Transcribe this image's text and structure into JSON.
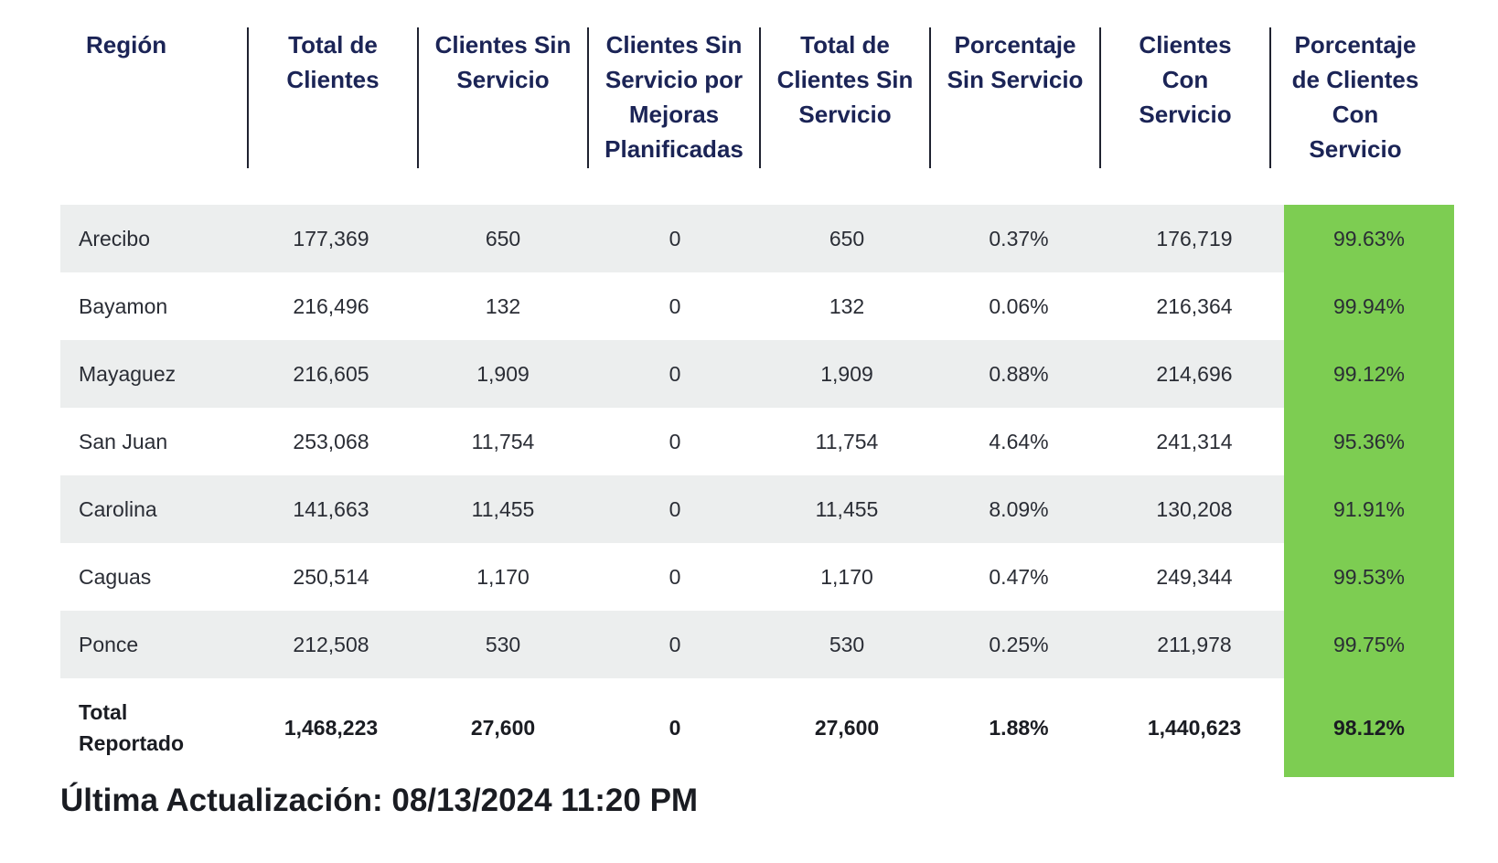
{
  "table": {
    "headers": [
      "Región",
      "Total de Clientes",
      "Clientes Sin Servicio",
      "Clientes Sin Servicio por Mejoras Planificadas",
      "Total de Clientes Sin Servicio",
      "Porcentaje Sin Servicio",
      "Clientes Con Servicio",
      "Porcentaje de Clientes Con Servicio"
    ],
    "header_lines": [
      "Región",
      "Total de\nClientes",
      "Clientes Sin\nServicio",
      "Clientes Sin\nServicio por\nMejoras\nPlanificadas",
      "Total de\nClientes Sin\nServicio",
      "Porcentaje\nSin Servicio",
      "Clientes\nCon\nServicio",
      "Porcentaje\nde Clientes\nCon\nServicio"
    ],
    "rows": [
      [
        "Arecibo",
        "177,369",
        "650",
        "0",
        "650",
        "0.37%",
        "176,719",
        "99.63%"
      ],
      [
        "Bayamon",
        "216,496",
        "132",
        "0",
        "132",
        "0.06%",
        "216,364",
        "99.94%"
      ],
      [
        "Mayaguez",
        "216,605",
        "1,909",
        "0",
        "1,909",
        "0.88%",
        "214,696",
        "99.12%"
      ],
      [
        "San Juan",
        "253,068",
        "11,754",
        "0",
        "11,754",
        "4.64%",
        "241,314",
        "95.36%"
      ],
      [
        "Carolina",
        "141,663",
        "11,455",
        "0",
        "11,455",
        "8.09%",
        "130,208",
        "91.91%"
      ],
      [
        "Caguas",
        "250,514",
        "1,170",
        "0",
        "1,170",
        "0.47%",
        "249,344",
        "99.53%"
      ],
      [
        "Ponce",
        "212,508",
        "530",
        "0",
        "530",
        "0.25%",
        "211,978",
        "99.75%"
      ]
    ],
    "total": [
      "Total\nReportado",
      "1,468,223",
      "27,600",
      "0",
      "27,600",
      "1.88%",
      "1,440,623",
      "98.12%"
    ]
  },
  "footer": {
    "updated": "Última Actualización: 08/13/2024 11:20 PM"
  },
  "colors": {
    "header_text": "#1b2456",
    "shade": "#eceeee",
    "highlight": "#7dcd52"
  }
}
